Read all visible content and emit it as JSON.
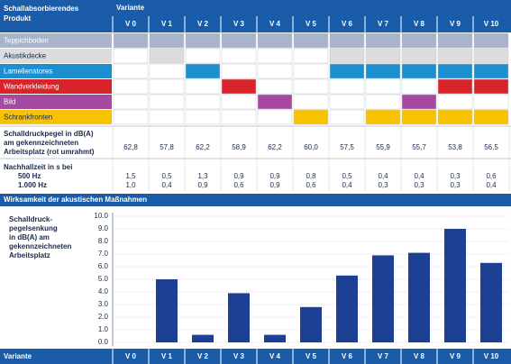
{
  "table": {
    "header": {
      "product_lines": [
        "Schallabsorbierendes",
        "Produkt"
      ],
      "variant": "Variante"
    },
    "products": [
      {
        "name": "Teppichboden",
        "color": "#a9b3c9",
        "text_color": "#ffffff",
        "used": [
          true,
          true,
          true,
          true,
          true,
          true,
          true,
          true,
          true,
          true,
          true
        ]
      },
      {
        "name": "Akustikdecke",
        "color": "#dcdcdc",
        "text_color": "#1a2a4a",
        "used": [
          false,
          true,
          false,
          false,
          false,
          false,
          true,
          true,
          true,
          true,
          true
        ]
      },
      {
        "name": "Lamellenstores",
        "color": "#1b8fd0",
        "text_color": "#ffffff",
        "used": [
          false,
          false,
          true,
          false,
          false,
          false,
          true,
          true,
          true,
          true,
          true
        ]
      },
      {
        "name": "Wandverkleidung",
        "color": "#d8232a",
        "text_color": "#ffffff",
        "used": [
          false,
          false,
          false,
          true,
          false,
          false,
          false,
          false,
          false,
          true,
          true
        ]
      },
      {
        "name": "Bild",
        "color": "#a54aa0",
        "text_color": "#ffffff",
        "used": [
          false,
          false,
          false,
          false,
          true,
          false,
          false,
          false,
          true,
          false,
          false
        ]
      },
      {
        "name": "Schrankfronten",
        "color": "#f7c200",
        "text_color": "#1a2a4a",
        "used": [
          false,
          false,
          false,
          false,
          false,
          true,
          false,
          true,
          true,
          true,
          true
        ]
      }
    ],
    "pegel": {
      "label_lines": [
        "Schalldruckpegel in dB(A)",
        "am gekennzeichneten",
        "Arbeitsplatz (rot umrahmt)"
      ],
      "values": [
        "62,8",
        "57,8",
        "62,2",
        "58,9",
        "62,2",
        "60,0",
        "57,5",
        "55,9",
        "55,7",
        "53,8",
        "56,5"
      ]
    },
    "nachhall": {
      "label_lines": [
        "Nachhallzeit in s bei",
        "500 Hz",
        "1.000 Hz"
      ],
      "values_500": [
        "1,5",
        "0,5",
        "1,3",
        "0,9",
        "0,9",
        "0,8",
        "0,5",
        "0,4",
        "0,4",
        "0,3",
        "0,6"
      ],
      "values_1000": [
        "1,0",
        "0,4",
        "0,9",
        "0,6",
        "0,9",
        "0,6",
        "0,4",
        "0,3",
        "0,3",
        "0,3",
        "0,4"
      ]
    }
  },
  "chart_data": {
    "type": "bar",
    "title": "Wirksamkeit der akustischen Maßnahmen",
    "ylabel_lines": [
      "Schalldruck-",
      "pegelsenkung",
      "in dB(A) am",
      "gekennzeichneten",
      "Arbeitsplatz"
    ],
    "categories": [
      "V 0",
      "V 1",
      "V 2",
      "V 3",
      "V 4",
      "V 5",
      "V 6",
      "V 7",
      "V 8",
      "V 9",
      "V 10"
    ],
    "values": [
      0,
      5.0,
      0.6,
      3.9,
      0.6,
      2.8,
      5.3,
      6.9,
      7.1,
      9.0,
      6.3
    ],
    "color": "#1d3f94",
    "ylim": [
      0,
      10
    ],
    "yticks": [
      {
        "value": 0,
        "label": "0.0"
      },
      {
        "value": 1,
        "label": "1.0"
      },
      {
        "value": 2,
        "label": "2.0"
      },
      {
        "value": 3,
        "label": "3.0"
      },
      {
        "value": 4,
        "label": "4.0"
      },
      {
        "value": 5,
        "label": "5.0"
      },
      {
        "value": 6,
        "label": "6.0"
      },
      {
        "value": 7,
        "label": "7.0"
      },
      {
        "value": 8,
        "label": "8.0"
      },
      {
        "value": 9,
        "label": "9.0"
      },
      {
        "value": 10,
        "label": "10.0"
      }
    ],
    "grid": true
  }
}
